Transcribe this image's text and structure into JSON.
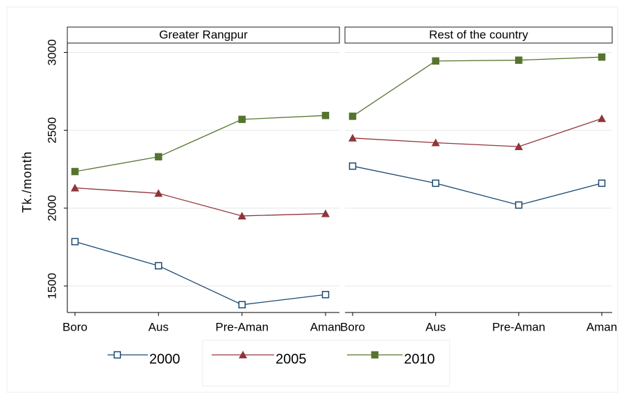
{
  "chart_data": [
    {
      "type": "line",
      "title": "Greater Rangpur",
      "y_label": "Tk./month",
      "categories": [
        "Boro",
        "Aus",
        "Pre-Aman",
        "Aman"
      ],
      "ylim": [
        1330,
        3060
      ],
      "yticks": [
        1500,
        2000,
        2500,
        3000
      ],
      "grid": true,
      "series": [
        {
          "name": "2000",
          "color": "#1a476f",
          "marker": "hollow-square",
          "values": [
            1785,
            1630,
            1380,
            1445
          ]
        },
        {
          "name": "2005",
          "color": "#90353b",
          "marker": "triangle",
          "values": [
            2130,
            2095,
            1950,
            1965
          ]
        },
        {
          "name": "2010",
          "color": "#55752f",
          "marker": "square",
          "values": [
            2235,
            2330,
            2570,
            2595
          ]
        }
      ]
    },
    {
      "type": "line",
      "title": "Rest of the country",
      "categories": [
        "Boro",
        "Aus",
        "Pre-Aman",
        "Aman"
      ],
      "ylim": [
        1330,
        3060
      ],
      "yticks": [
        1500,
        2000,
        2500,
        3000
      ],
      "grid": true,
      "series": [
        {
          "color": "#1a476f",
          "marker": "hollow-square",
          "values": [
            2270,
            2160,
            2020,
            2160
          ]
        },
        {
          "color": "#90353b",
          "marker": "triangle",
          "values": [
            2450,
            2420,
            2395,
            2575
          ]
        },
        {
          "color": "#55752f",
          "marker": "square",
          "values": [
            2590,
            2945,
            2950,
            2970
          ]
        }
      ]
    }
  ]
}
